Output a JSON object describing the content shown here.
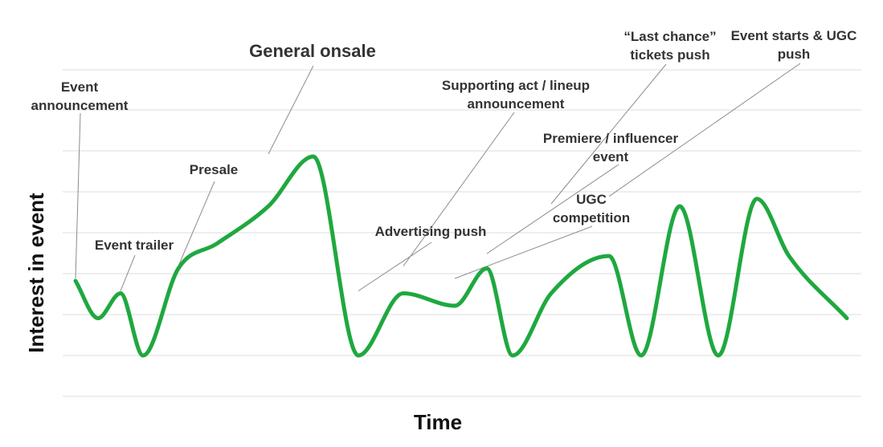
{
  "chart_data": {
    "type": "line",
    "xlabel": "Time",
    "ylabel": "Interest in event",
    "ylim": [
      0,
      10
    ],
    "grid": true,
    "series_color": "#1fa83f",
    "series": [
      {
        "x": [
          0,
          3.5,
          7,
          10.5,
          16,
          22,
          30,
          37,
          44,
          51,
          59,
          64,
          68,
          74,
          83,
          88,
          94,
          100,
          106,
          111,
          120
        ],
        "values": [
          3.0,
          1.5,
          2.5,
          0.0,
          3.5,
          4.5,
          6.0,
          8.0,
          0.0,
          2.5,
          2.0,
          3.5,
          0.0,
          2.5,
          4.0,
          0.0,
          6.0,
          0.0,
          6.3,
          4.0,
          1.5
        ]
      }
    ],
    "annotations": [
      {
        "lines": [
          "Event",
          "announcement"
        ],
        "x": 0,
        "y": 3.0,
        "size": "normal"
      },
      {
        "lines": [
          "Event trailer"
        ],
        "x": 7,
        "y": 2.5,
        "size": "normal"
      },
      {
        "lines": [
          "Presale"
        ],
        "x": 16,
        "y": 3.5,
        "size": "normal"
      },
      {
        "lines": [
          "General onsale"
        ],
        "x": 30,
        "y": 8.0,
        "size": "big"
      },
      {
        "lines": [
          "Advertising push"
        ],
        "x": 44,
        "y": 2.5,
        "size": "normal"
      },
      {
        "lines": [
          "Supporting act / lineup",
          "announcement"
        ],
        "x": 51,
        "y": 3.5,
        "size": "normal"
      },
      {
        "lines": [
          "UGC",
          "competition"
        ],
        "x": 59,
        "y": 3.0,
        "size": "normal"
      },
      {
        "lines": [
          "Premiere / influencer",
          "event"
        ],
        "x": 64,
        "y": 4.0,
        "size": "normal"
      },
      {
        "lines": [
          "“Last chance”",
          "tickets push"
        ],
        "x": 74,
        "y": 6.0,
        "size": "normal"
      },
      {
        "lines": [
          "Event starts & UGC",
          "push"
        ],
        "x": 83,
        "y": 6.3,
        "size": "normal"
      }
    ]
  }
}
